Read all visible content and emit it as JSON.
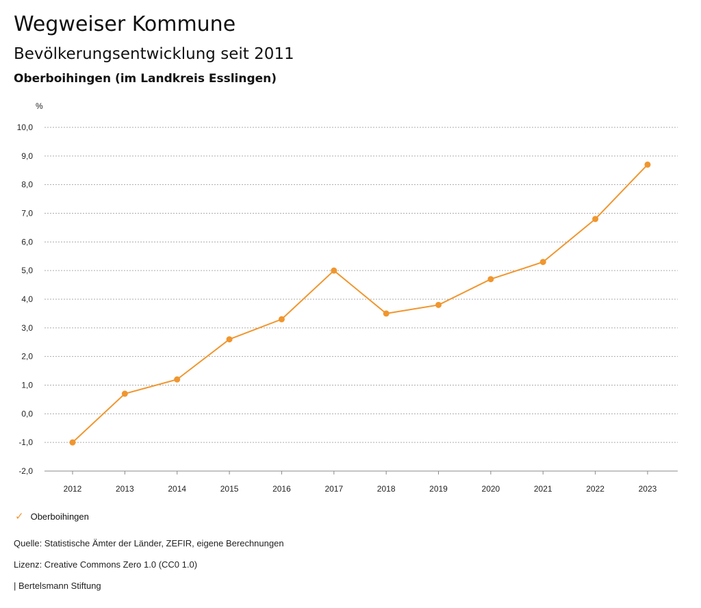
{
  "header": {
    "title": "Wegweiser Kommune",
    "subtitle": "Bevölkerungsentwicklung seit 2011",
    "region": "Oberboihingen (im Landkreis Esslingen)"
  },
  "chart_data": {
    "type": "line",
    "title": "Bevölkerungsentwicklung seit 2011",
    "ylabel": "%",
    "xlabel": "",
    "ylim": [
      -2,
      10
    ],
    "yticks": [
      "10,0",
      "9,0",
      "8,0",
      "7,0",
      "6,0",
      "5,0",
      "4,0",
      "3,0",
      "2,0",
      "1,0",
      "0,0",
      "-1,0",
      "-2,0"
    ],
    "ytick_values": [
      10,
      9,
      8,
      7,
      6,
      5,
      4,
      3,
      2,
      1,
      0,
      -1,
      -2
    ],
    "categories": [
      "2012",
      "2013",
      "2014",
      "2015",
      "2016",
      "2017",
      "2018",
      "2019",
      "2020",
      "2021",
      "2022",
      "2023"
    ],
    "series": [
      {
        "name": "Oberboihingen",
        "color": "#f0962f",
        "values": [
          -1.0,
          0.7,
          1.2,
          2.6,
          3.3,
          5.0,
          3.5,
          3.8,
          4.7,
          5.3,
          6.8,
          8.7
        ]
      }
    ],
    "grid": true,
    "legend": "bottom-left"
  },
  "legend": {
    "label": "Oberboihingen"
  },
  "footer": {
    "source": "Quelle: Statistische Ämter der Länder, ZEFIR, eigene Berechnungen",
    "license": "Lizenz: Creative Commons Zero 1.0 (CC0 1.0)",
    "publisher": "| Bertelsmann Stiftung"
  }
}
